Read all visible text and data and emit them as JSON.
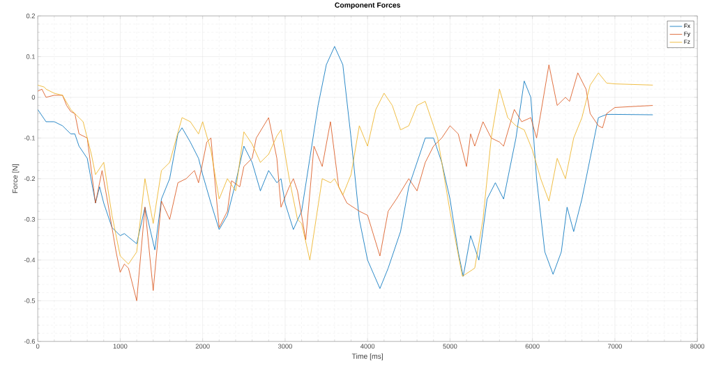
{
  "chart_data": {
    "type": "line",
    "title": "Component Forces",
    "xlabel": "Time [ms]",
    "ylabel": "Force [N]",
    "xlim": [
      0,
      8000
    ],
    "ylim": [
      -0.6,
      0.2
    ],
    "xticks": [
      0,
      1000,
      2000,
      3000,
      4000,
      5000,
      6000,
      7000,
      8000
    ],
    "yticks": [
      -0.6,
      -0.5,
      -0.4,
      -0.3,
      -0.2,
      -0.1,
      0,
      0.1,
      0.2
    ],
    "grid": true,
    "legend": "top right",
    "marker": "none",
    "line_style": "solid",
    "series": [
      {
        "name": "Fx",
        "color": "#0072bd",
        "x": [
          0,
          100,
          200,
          300,
          400,
          450,
          500,
          600,
          700,
          750,
          800,
          900,
          1000,
          1050,
          1200,
          1300,
          1420,
          1500,
          1600,
          1700,
          1750,
          1850,
          1950,
          2000,
          2100,
          2200,
          2300,
          2400,
          2500,
          2600,
          2700,
          2800,
          2900,
          2950,
          3000,
          3100,
          3200,
          3300,
          3400,
          3500,
          3600,
          3700,
          3800,
          3900,
          4000,
          4150,
          4250,
          4400,
          4500,
          4600,
          4700,
          4800,
          4900,
          5000,
          5100,
          5160,
          5250,
          5350,
          5450,
          5550,
          5650,
          5800,
          5900,
          5980,
          6050,
          6150,
          6250,
          6350,
          6420,
          6500,
          6600,
          6700,
          6800,
          6900,
          7000,
          7460
        ],
        "values": [
          -0.03,
          -0.06,
          -0.06,
          -0.07,
          -0.09,
          -0.09,
          -0.12,
          -0.15,
          -0.26,
          -0.22,
          -0.26,
          -0.32,
          -0.34,
          -0.335,
          -0.36,
          -0.27,
          -0.375,
          -0.25,
          -0.2,
          -0.09,
          -0.075,
          -0.11,
          -0.15,
          -0.19,
          -0.26,
          -0.325,
          -0.29,
          -0.21,
          -0.12,
          -0.16,
          -0.23,
          -0.18,
          -0.21,
          -0.2,
          -0.26,
          -0.325,
          -0.28,
          -0.15,
          -0.02,
          0.08,
          0.125,
          0.08,
          -0.1,
          -0.3,
          -0.4,
          -0.47,
          -0.42,
          -0.33,
          -0.22,
          -0.16,
          -0.1,
          -0.1,
          -0.16,
          -0.25,
          -0.38,
          -0.44,
          -0.34,
          -0.4,
          -0.25,
          -0.21,
          -0.25,
          -0.1,
          0.04,
          0.0,
          -0.2,
          -0.38,
          -0.435,
          -0.38,
          -0.27,
          -0.33,
          -0.25,
          -0.15,
          -0.05,
          -0.042,
          -0.042,
          -0.043
        ]
      },
      {
        "name": "Fy",
        "color": "#d95319",
        "x": [
          0,
          50,
          100,
          200,
          300,
          350,
          400,
          450,
          500,
          600,
          700,
          780,
          850,
          950,
          1000,
          1050,
          1100,
          1200,
          1300,
          1400,
          1500,
          1600,
          1700,
          1800,
          1900,
          1950,
          2050,
          2100,
          2200,
          2300,
          2350,
          2450,
          2500,
          2600,
          2650,
          2800,
          2900,
          2950,
          3050,
          3100,
          3150,
          3250,
          3350,
          3450,
          3550,
          3650,
          3750,
          3900,
          4000,
          4150,
          4250,
          4350,
          4500,
          4600,
          4700,
          4800,
          4900,
          5000,
          5100,
          5200,
          5250,
          5300,
          5400,
          5500,
          5600,
          5650,
          5780,
          5870,
          5980,
          6050,
          6200,
          6300,
          6400,
          6450,
          6550,
          6650,
          6700,
          6800,
          6850,
          6900,
          7000,
          7460
        ],
        "values": [
          0.015,
          0.02,
          0.0,
          0.005,
          0.005,
          -0.02,
          -0.035,
          -0.04,
          -0.09,
          -0.1,
          -0.26,
          -0.18,
          -0.26,
          -0.38,
          -0.43,
          -0.41,
          -0.42,
          -0.5,
          -0.27,
          -0.475,
          -0.255,
          -0.3,
          -0.21,
          -0.2,
          -0.18,
          -0.21,
          -0.11,
          -0.1,
          -0.32,
          -0.28,
          -0.205,
          -0.22,
          -0.17,
          -0.15,
          -0.1,
          -0.05,
          -0.15,
          -0.27,
          -0.22,
          -0.2,
          -0.23,
          -0.35,
          -0.12,
          -0.17,
          -0.06,
          -0.22,
          -0.26,
          -0.28,
          -0.29,
          -0.39,
          -0.28,
          -0.25,
          -0.2,
          -0.23,
          -0.16,
          -0.12,
          -0.1,
          -0.07,
          -0.09,
          -0.17,
          -0.09,
          -0.12,
          -0.06,
          -0.1,
          -0.11,
          -0.12,
          -0.03,
          -0.06,
          -0.05,
          -0.1,
          0.08,
          -0.02,
          0.0,
          -0.01,
          0.06,
          0.02,
          -0.04,
          -0.07,
          -0.075,
          -0.04,
          -0.025,
          -0.02
        ]
      },
      {
        "name": "Fz",
        "color": "#edb120",
        "x": [
          0,
          80,
          100,
          200,
          300,
          400,
          500,
          550,
          650,
          700,
          800,
          900,
          1000,
          1100,
          1200,
          1300,
          1400,
          1500,
          1600,
          1750,
          1850,
          1950,
          2000,
          2100,
          2200,
          2300,
          2400,
          2500,
          2600,
          2700,
          2800,
          2900,
          2950,
          3050,
          3150,
          3200,
          3300,
          3450,
          3550,
          3600,
          3700,
          3800,
          3900,
          4000,
          4100,
          4200,
          4300,
          4400,
          4500,
          4600,
          4700,
          4850,
          5000,
          5150,
          5300,
          5400,
          5500,
          5600,
          5700,
          5800,
          5900,
          6000,
          6100,
          6200,
          6300,
          6400,
          6500,
          6600,
          6700,
          6800,
          6900,
          7000,
          7460
        ],
        "values": [
          0.03,
          0.025,
          0.02,
          0.01,
          0.005,
          -0.03,
          -0.05,
          -0.06,
          -0.14,
          -0.19,
          -0.16,
          -0.29,
          -0.39,
          -0.41,
          -0.38,
          -0.2,
          -0.31,
          -0.18,
          -0.16,
          -0.05,
          -0.06,
          -0.09,
          -0.06,
          -0.13,
          -0.25,
          -0.2,
          -0.23,
          -0.085,
          -0.115,
          -0.16,
          -0.14,
          -0.095,
          -0.08,
          -0.2,
          -0.3,
          -0.31,
          -0.4,
          -0.2,
          -0.21,
          -0.2,
          -0.24,
          -0.19,
          -0.07,
          -0.12,
          -0.03,
          0.01,
          -0.02,
          -0.08,
          -0.07,
          -0.02,
          -0.01,
          -0.1,
          -0.28,
          -0.44,
          -0.42,
          -0.3,
          -0.1,
          0.02,
          -0.05,
          -0.07,
          -0.08,
          -0.13,
          -0.2,
          -0.255,
          -0.15,
          -0.2,
          -0.1,
          -0.05,
          0.03,
          0.06,
          0.035,
          0.033,
          0.03
        ]
      }
    ]
  }
}
